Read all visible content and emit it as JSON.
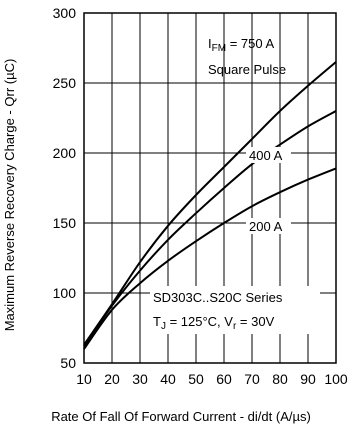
{
  "chart_data": {
    "type": "line",
    "xlabel": "Rate Of Fall Of Forward Current - di/dt (A/µs)",
    "ylabel": "Maximum Reverse Recovery Charge - Qrr (µC)",
    "xlim": [
      10,
      100
    ],
    "ylim": [
      50,
      300
    ],
    "xticks": [
      "10",
      "20",
      "30",
      "40",
      "50",
      "60",
      "70",
      "80",
      "90",
      "100"
    ],
    "yticks": [
      "50",
      "100",
      "150",
      "200",
      "250",
      "300"
    ],
    "grid": true,
    "series": [
      {
        "name": "IFM = 750 A",
        "x": [
          10,
          20,
          30,
          40,
          50,
          60,
          70,
          80,
          90,
          100
        ],
        "values": [
          63,
          92,
          122,
          148,
          170,
          190,
          210,
          230,
          248,
          265
        ]
      },
      {
        "name": "400 A",
        "x": [
          10,
          20,
          30,
          40,
          50,
          60,
          70,
          80,
          90,
          100
        ],
        "values": [
          62,
          91,
          116,
          138,
          157,
          175,
          192,
          206,
          219,
          230
        ]
      },
      {
        "name": "200 A",
        "x": [
          10,
          20,
          30,
          40,
          50,
          60,
          70,
          80,
          90,
          100
        ],
        "values": [
          60,
          88,
          107,
          123,
          137,
          150,
          162,
          172,
          181,
          189
        ]
      }
    ],
    "annotations": {
      "ifm_main": "I",
      "ifm_sub": "FM",
      "ifm_rest": " = 750 A",
      "square_pulse": "Square Pulse",
      "label_400": "400 A",
      "label_200": "200 A",
      "series_title": "SD303C..S20C Series",
      "tj_main": "T",
      "tj_sub": "J",
      "tj_rest": " = 125°C, V",
      "vr_sub": "r",
      "vr_rest": " = 30V"
    }
  }
}
